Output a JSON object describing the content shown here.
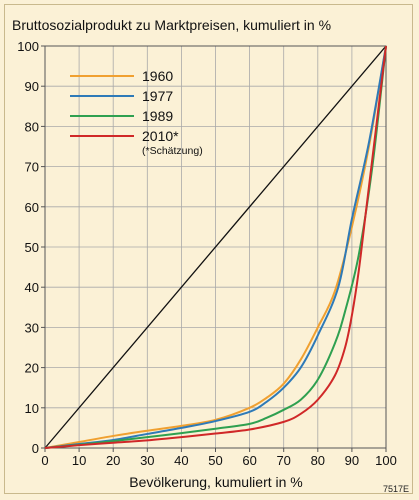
{
  "chart_data": {
    "type": "line",
    "title": "Bruttosozialprodukt zu Marktpreisen, kumuliert in %",
    "xlabel": "Bevölkerung, kumuliert in %",
    "ylabel": "",
    "xlim": [
      0,
      100
    ],
    "ylim": [
      0,
      100
    ],
    "x_ticks": [
      "0",
      "10",
      "20",
      "30",
      "40",
      "50",
      "60",
      "70",
      "80",
      "90",
      "100"
    ],
    "y_ticks": [
      "0",
      "10",
      "20",
      "30",
      "40",
      "50",
      "60",
      "70",
      "80",
      "90",
      "100"
    ],
    "grid": true,
    "legend_position": "top-left",
    "diagonal": {
      "x": [
        0,
        100
      ],
      "y": [
        0,
        100
      ],
      "color": "#111111"
    },
    "series": [
      {
        "name": "1960",
        "color": "#f0a030",
        "x": [
          0,
          10,
          20,
          30,
          40,
          50,
          60,
          65,
          70,
          75,
          80,
          85,
          90,
          95,
          100
        ],
        "y": [
          0,
          1.5,
          3,
          4.3,
          5.5,
          7,
          10,
          12.5,
          16,
          22,
          30,
          39,
          55,
          75,
          100
        ]
      },
      {
        "name": "1977",
        "color": "#2e7ab8",
        "x": [
          0,
          10,
          20,
          30,
          40,
          50,
          60,
          65,
          70,
          75,
          80,
          86,
          90,
          95,
          100
        ],
        "y": [
          0,
          1,
          2,
          3.5,
          5,
          6.7,
          9,
          11.5,
          15,
          20,
          28,
          40,
          57,
          76,
          100
        ]
      },
      {
        "name": "1989",
        "color": "#2fa050",
        "x": [
          0,
          10,
          20,
          30,
          40,
          50,
          60,
          65,
          70,
          75,
          80,
          85,
          88,
          92,
          96,
          100
        ],
        "y": [
          0,
          0.8,
          1.7,
          2.7,
          3.7,
          4.8,
          6,
          7.5,
          9.5,
          12,
          17,
          26,
          34,
          48,
          70,
          100
        ]
      },
      {
        "name": "2010*",
        "color": "#d02828",
        "note": "(*Schätzung)",
        "x": [
          0,
          10,
          20,
          30,
          40,
          50,
          60,
          70,
          75,
          80,
          85,
          88,
          90,
          92,
          94,
          96,
          98,
          100
        ],
        "y": [
          0,
          0.7,
          1.3,
          1.9,
          2.7,
          3.6,
          4.6,
          6.5,
          8.5,
          12,
          18,
          25,
          33,
          44,
          58,
          72,
          86,
          100
        ]
      }
    ]
  },
  "footer": {
    "code": "7517E"
  }
}
